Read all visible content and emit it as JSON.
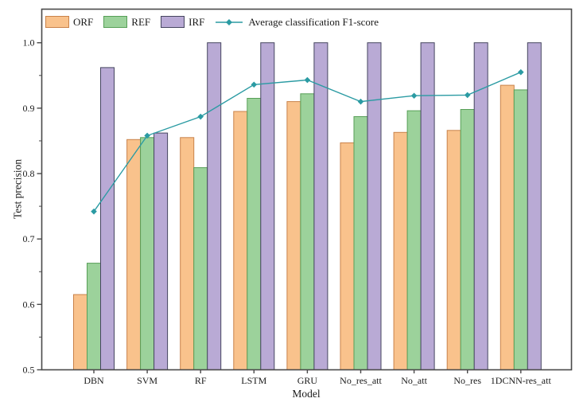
{
  "chart_data": {
    "type": "bar",
    "title": "",
    "xlabel": "Model",
    "ylabel": "Test precision",
    "categories": [
      "DBN",
      "SVM",
      "RF",
      "LSTM",
      "GRU",
      "No_res_att",
      "No_att",
      "No_res",
      "1DCNN-res_att"
    ],
    "series": [
      {
        "name": "ORF",
        "type": "bar",
        "color": "#F9C28C",
        "border": "#C9824A",
        "values": [
          0.615,
          0.852,
          0.855,
          0.895,
          0.91,
          0.847,
          0.863,
          0.866,
          0.935
        ]
      },
      {
        "name": "REF",
        "type": "bar",
        "color": "#9CD29B",
        "border": "#579F57",
        "values": [
          0.663,
          0.855,
          0.809,
          0.915,
          0.922,
          0.887,
          0.896,
          0.898,
          0.928
        ]
      },
      {
        "name": "IRF",
        "type": "bar",
        "color": "#B9AAD5",
        "border": "#45455F",
        "values": [
          0.962,
          0.862,
          1.0,
          1.0,
          1.0,
          1.0,
          1.0,
          1.0,
          1.0
        ]
      },
      {
        "name": "Average classification F1-score",
        "type": "line",
        "color": "#2B9BA3",
        "values": [
          0.742,
          0.858,
          0.887,
          0.936,
          0.943,
          0.91,
          0.919,
          0.92,
          0.955
        ]
      }
    ],
    "ylim": [
      0.5,
      1.05
    ],
    "yticks": [
      "0.5",
      "0.6",
      "0.7",
      "0.8",
      "0.9",
      "1.0"
    ],
    "grid": false,
    "legend_position": "top-left-horizontal",
    "axis_color": "#4A4A4A",
    "text_color": "#1a1a1a"
  }
}
